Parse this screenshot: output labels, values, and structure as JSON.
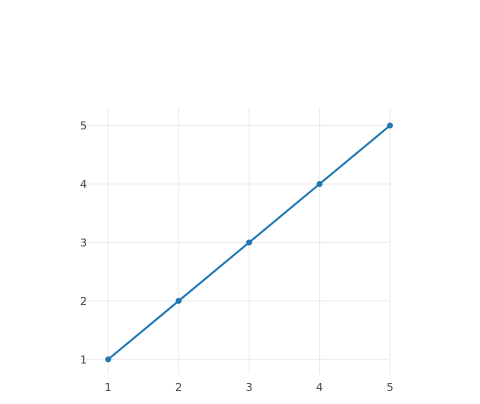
{
  "chart_data": {
    "type": "line",
    "title": "",
    "xlabel": "",
    "ylabel": "",
    "x": [
      1,
      2,
      3,
      4,
      5
    ],
    "series": [
      {
        "values": [
          1,
          2,
          3,
          4,
          5
        ],
        "color": "#1f77b4"
      }
    ],
    "x_ticks": [
      "1",
      "2",
      "3",
      "4",
      "5"
    ],
    "y_ticks": [
      "1",
      "2",
      "3",
      "4",
      "5"
    ],
    "xlim": [
      1,
      5
    ],
    "ylim": [
      1,
      5
    ],
    "grid": true,
    "legend": false
  },
  "colors": {
    "grid": "#ebebeb",
    "text": "#444444",
    "background": "#ffffff"
  }
}
